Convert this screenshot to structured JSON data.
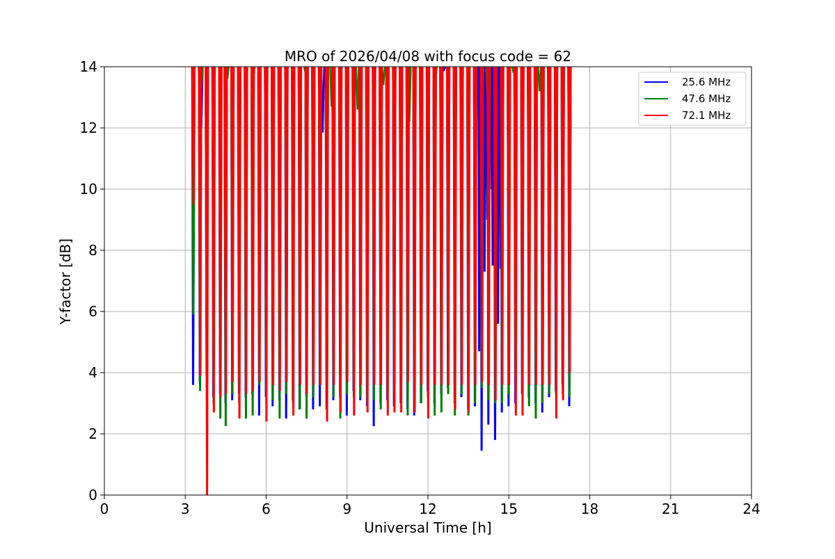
{
  "chart_data": {
    "type": "line",
    "title": "MRO of 2026/04/08 with focus code = 62",
    "xlabel": "Universal Time [h]",
    "ylabel": "Y-factor [dB]",
    "xlim": [
      0,
      24
    ],
    "ylim": [
      0,
      14
    ],
    "xticks": [
      0,
      3,
      6,
      9,
      12,
      15,
      18,
      21,
      24
    ],
    "yticks": [
      0,
      2,
      4,
      6,
      8,
      10,
      12,
      14
    ],
    "grid": true,
    "legend_position": "top-right",
    "colors": {
      "blue": "#0000ff",
      "green": "#008000",
      "red": "#ff0000",
      "grid": "#b0b0b0"
    },
    "series": [
      {
        "name": "25.6 MHz",
        "color": "#0000ff",
        "pulse_times": [
          3.3,
          3.55,
          3.8,
          4.05,
          4.3,
          4.5,
          4.75,
          5.0,
          5.25,
          5.5,
          5.75,
          6.0,
          6.25,
          6.5,
          6.75,
          7.0,
          7.25,
          7.5,
          7.75,
          8.0,
          8.25,
          8.5,
          8.75,
          9.0,
          9.25,
          9.5,
          9.75,
          10.0,
          10.25,
          10.5,
          10.75,
          11.0,
          11.25,
          11.5,
          11.75,
          12.0,
          12.25,
          12.5,
          12.75,
          13.0,
          13.25,
          13.5,
          13.75,
          14.0,
          14.25,
          14.5,
          14.75,
          15.0,
          15.25,
          15.5,
          15.75,
          16.0,
          16.25,
          16.5,
          16.75,
          17.0,
          17.25
        ],
        "pulse_min": [
          3.6,
          3.7,
          3.9,
          3.2,
          3.3,
          3.0,
          3.1,
          3.3,
          3.2,
          3.3,
          2.6,
          3.2,
          2.9,
          3.1,
          2.5,
          3.1,
          2.8,
          3.2,
          2.8,
          2.9,
          2.8,
          3.1,
          3.2,
          2.6,
          3.4,
          3.1,
          2.9,
          2.25,
          3.0,
          3.1,
          2.9,
          3.0,
          2.8,
          2.6,
          3.0,
          3.4,
          3.0,
          3.3,
          3.5,
          3.0,
          3.2,
          2.8,
          2.9,
          1.45,
          2.3,
          1.8,
          2.7,
          2.9,
          3.0,
          3.3,
          3.2,
          3.0,
          2.7,
          3.2,
          3.4,
          3.6,
          2.9
        ]
      },
      {
        "name": "47.6 MHz",
        "color": "#008000",
        "pulse_times": [
          3.3,
          3.55,
          3.8,
          4.05,
          4.3,
          4.5,
          4.75,
          5.0,
          5.25,
          5.5,
          5.75,
          6.0,
          6.25,
          6.5,
          6.75,
          7.0,
          7.25,
          7.5,
          7.75,
          8.0,
          8.25,
          8.5,
          8.75,
          9.0,
          9.25,
          9.5,
          9.75,
          10.0,
          10.25,
          10.5,
          10.75,
          11.0,
          11.25,
          11.5,
          11.75,
          12.0,
          12.25,
          12.5,
          12.75,
          13.0,
          13.25,
          13.5,
          13.75,
          14.0,
          14.25,
          14.5,
          14.75,
          15.0,
          15.25,
          15.5,
          15.75,
          16.0,
          16.25,
          16.5,
          16.75,
          17.0,
          17.25
        ],
        "pulse_min": [
          5.9,
          3.4,
          3.5,
          3.0,
          2.5,
          2.25,
          3.3,
          3.0,
          2.5,
          2.6,
          3.6,
          3.5,
          3.1,
          2.5,
          3.3,
          3.0,
          2.8,
          2.5,
          3.2,
          3.6,
          3.0,
          3.2,
          2.5,
          3.3,
          3.2,
          3.2,
          3.0,
          3.1,
          2.8,
          3.2,
          3.4,
          3.2,
          2.6,
          3.1,
          3.0,
          3.2,
          2.6,
          2.7,
          3.3,
          2.6,
          3.3,
          2.6,
          3.0,
          3.5,
          3.1,
          3.0,
          3.0,
          3.3,
          3.4,
          3.3,
          2.9,
          2.5,
          3.0,
          3.3,
          3.3,
          3.3,
          3.2
        ]
      },
      {
        "name": "72.1 MHz",
        "color": "#ff0000",
        "pulse_times": [
          3.3,
          3.55,
          3.8,
          4.05,
          4.3,
          4.5,
          4.75,
          5.0,
          5.25,
          5.5,
          5.75,
          6.0,
          6.25,
          6.5,
          6.75,
          7.0,
          7.25,
          7.5,
          7.75,
          8.0,
          8.25,
          8.5,
          8.75,
          9.0,
          9.25,
          9.5,
          9.75,
          10.0,
          10.25,
          10.5,
          10.75,
          11.0,
          11.25,
          11.5,
          11.75,
          12.0,
          12.25,
          12.5,
          12.75,
          13.0,
          13.25,
          13.5,
          13.75,
          14.0,
          14.25,
          14.5,
          14.75,
          15.0,
          15.25,
          15.5,
          15.75,
          16.0,
          16.25,
          16.5,
          16.75,
          17.0,
          17.25
        ],
        "pulse_min": [
          9.5,
          3.9,
          0.0,
          2.7,
          3.2,
          3.3,
          3.7,
          2.5,
          3.3,
          3.4,
          3.7,
          2.4,
          3.6,
          3.4,
          3.7,
          2.6,
          3.6,
          3.3,
          3.6,
          3.6,
          2.4,
          3.6,
          2.7,
          3.7,
          2.6,
          3.6,
          2.7,
          3.6,
          3.6,
          2.6,
          2.7,
          2.7,
          3.7,
          2.7,
          3.6,
          2.5,
          3.6,
          3.6,
          3.6,
          2.8,
          3.6,
          2.7,
          3.6,
          3.7,
          3.6,
          3.1,
          3.6,
          3.6,
          2.6,
          2.6,
          3.6,
          3.6,
          3.6,
          3.6,
          2.5,
          3.1,
          4.0
        ]
      }
    ],
    "blue_spike_region": {
      "time_range": [
        13.9,
        14.7
      ],
      "minima": [
        4.7,
        8.4,
        7.3,
        9.0,
        10.0,
        7.5,
        8.9,
        5.6,
        7.4
      ]
    },
    "top_dip_minima": {
      "25.6 MHz": [
        12.0,
        11.85,
        13.9
      ],
      "47.6 MHz": [
        13.3,
        13.6,
        13.5,
        12.4,
        13.8,
        12.7,
        12.6,
        13.4,
        12.2,
        13.5,
        13.7,
        12.95,
        13.8,
        13.2
      ]
    }
  }
}
